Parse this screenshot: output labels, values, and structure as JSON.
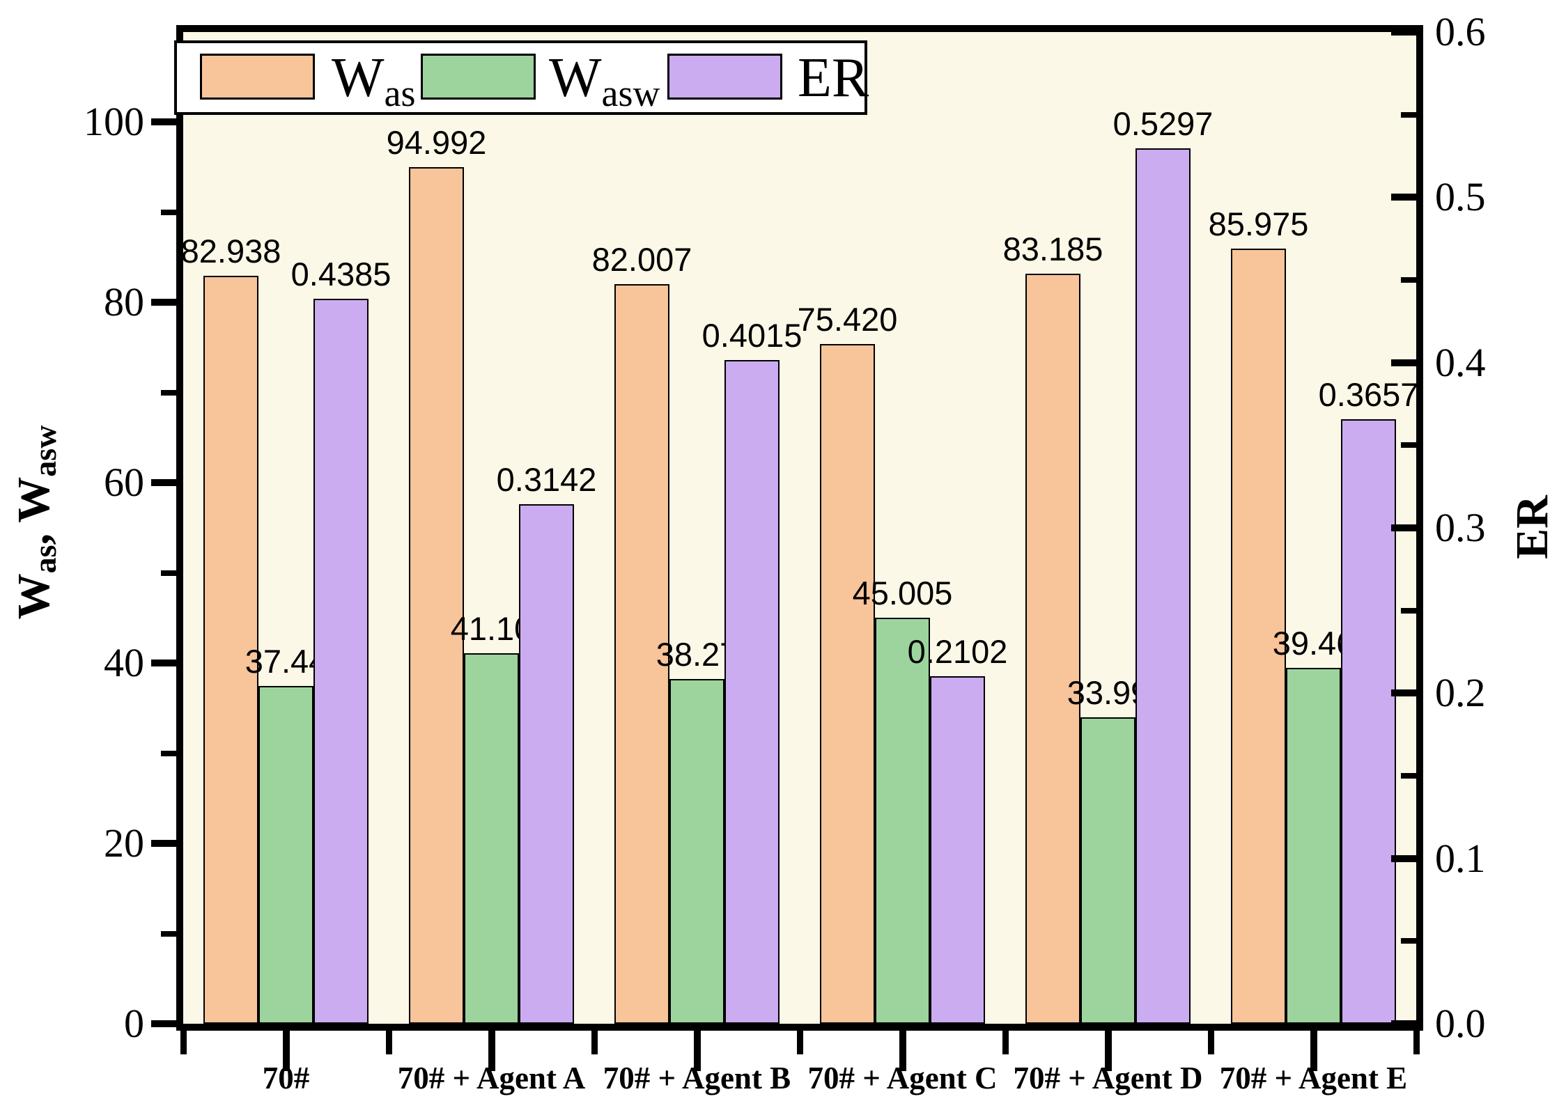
{
  "chart_data": {
    "type": "bar",
    "title": "",
    "categories": [
      "70#",
      "70# + Agent A",
      "70# + Agent B",
      "70# + Agent C",
      "70# + Agent D",
      "70# + Agent E"
    ],
    "series": [
      {
        "name": "Was",
        "axis": "left",
        "color": "#F8C49A",
        "values": [
          82.938,
          94.992,
          82.007,
          75.42,
          83.185,
          85.975
        ],
        "labels": [
          "82.938",
          "94.992",
          "82.007",
          "75.420",
          "83.185",
          "85.975"
        ]
      },
      {
        "name": "Wasw",
        "axis": "left",
        "color": "#9DD49E",
        "values": [
          37.44,
          41.1,
          38.27,
          45.005,
          33.99,
          39.46
        ],
        "labels": [
          "37.44",
          "41.10",
          "38.27",
          "45.005",
          "33.99",
          "39.46"
        ]
      },
      {
        "name": "ER",
        "axis": "right",
        "color": "#CBACF0",
        "values": [
          0.4385,
          0.3142,
          0.4015,
          0.2102,
          0.5297,
          0.3657
        ],
        "labels": [
          "0.4385",
          "0.3142",
          "0.4015",
          "0.2102",
          "0.5297",
          "0.3657"
        ]
      }
    ],
    "left_axis": {
      "title": "Was, Wasw",
      "range": [
        0,
        110
      ],
      "major_ticks": [
        0,
        20,
        40,
        60,
        80,
        100
      ],
      "tick_labels": [
        "0",
        "20",
        "40",
        "60",
        "80",
        "100"
      ],
      "minor_ticks": [
        10,
        30,
        50,
        70,
        90
      ]
    },
    "right_axis": {
      "title": "ER",
      "range": [
        0,
        0.6
      ],
      "major_ticks": [
        0,
        0.1,
        0.2,
        0.3,
        0.4,
        0.5,
        0.6
      ],
      "tick_labels": [
        "0.0",
        "0.1",
        "0.2",
        "0.3",
        "0.4",
        "0.5",
        "0.6"
      ],
      "minor_ticks": [
        0.05,
        0.15,
        0.25,
        0.35,
        0.45,
        0.55
      ]
    },
    "legend_position": "top-left",
    "grid": false,
    "plot_background": "#FBF8E7"
  },
  "legend": {
    "items": [
      {
        "main": "W",
        "sub": "as",
        "color": "#F8C49A"
      },
      {
        "main": "W",
        "sub": "asw",
        "color": "#9DD49E"
      },
      {
        "main": "ER",
        "sub": "",
        "color": "#CBACF0"
      }
    ]
  },
  "axis_titles": {
    "left": {
      "main1": "W",
      "sub1": "as",
      "mid": ", W",
      "sub2": "asw"
    },
    "right": {
      "text": "ER"
    }
  }
}
